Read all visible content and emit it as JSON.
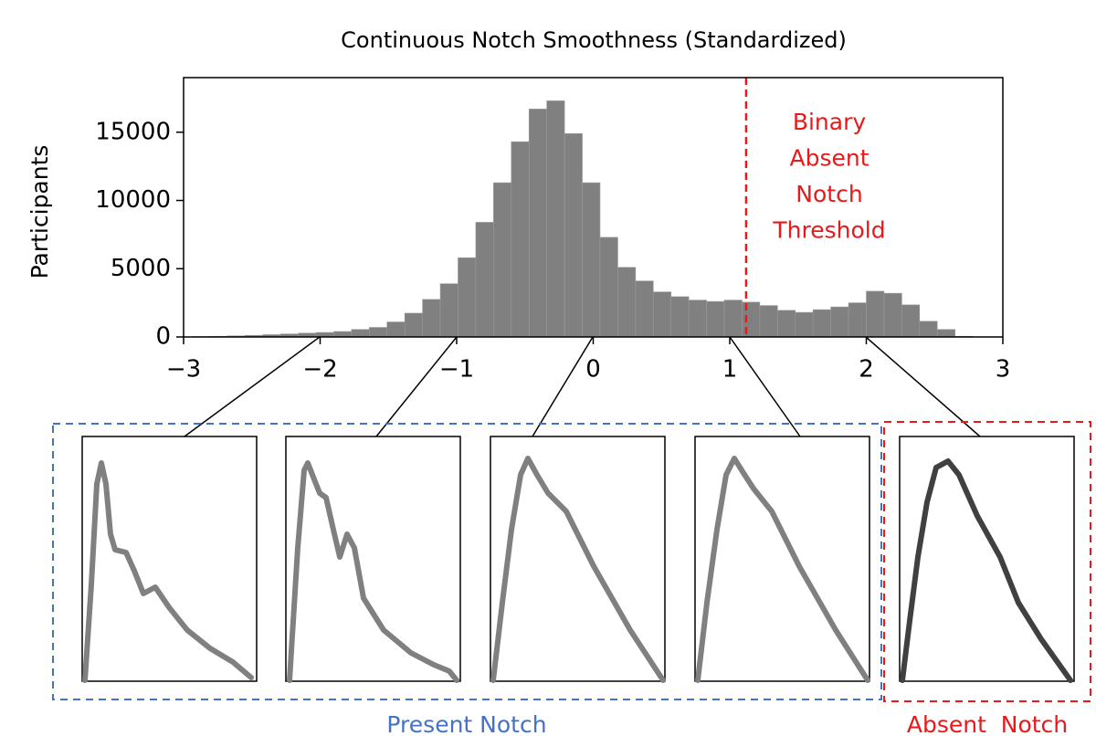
{
  "chart_data": {
    "type": "histogram",
    "title": "Continuous Notch Smoothness (Standardized)",
    "ylabel": "Participants",
    "bins": [
      -2.94,
      -2.81,
      -2.68,
      -2.55,
      -2.42,
      -2.29,
      -2.16,
      -2.03,
      -1.9,
      -1.77,
      -1.64,
      -1.51,
      -1.38,
      -1.25,
      -1.12,
      -0.99,
      -0.86,
      -0.73,
      -0.6,
      -0.47,
      -0.34,
      -0.21,
      -0.08,
      0.05,
      0.18,
      0.31,
      0.44,
      0.57,
      0.7,
      0.83,
      0.96,
      1.09,
      1.22,
      1.35,
      1.48,
      1.61,
      1.74,
      1.87,
      2.0,
      2.13,
      2.26,
      2.39,
      2.52,
      2.65,
      2.78
    ],
    "counts": [
      30,
      50,
      80,
      120,
      170,
      220,
      280,
      330,
      400,
      550,
      700,
      1100,
      1740,
      2750,
      3900,
      5800,
      8400,
      11300,
      14300,
      16700,
      17300,
      14900,
      11300,
      7300,
      5100,
      4100,
      3300,
      2950,
      2700,
      2600,
      2700,
      2550,
      2300,
      1950,
      1800,
      2000,
      2200,
      2500,
      3350,
      3200,
      2350,
      1150,
      550,
      50
    ],
    "color": "#808080",
    "xlim": [
      -3,
      3
    ],
    "xticks": [
      {
        "value": -3,
        "label": "−3"
      },
      {
        "value": -2,
        "label": "−2"
      },
      {
        "value": -1,
        "label": "−1"
      },
      0,
      1,
      2,
      3
    ],
    "ylim": [
      0,
      19000
    ],
    "yticks": [
      0,
      5000,
      10000,
      15000
    ],
    "threshold": 1.12,
    "threshold_color": "#e8191b",
    "annotation": [
      "Binary",
      "Absent",
      "Notch",
      "Threshold"
    ],
    "groups": [
      {
        "label": "Present Notch",
        "color": "#4472c4"
      },
      {
        "label": "Absent  Notch",
        "color": "#e8191b"
      }
    ]
  }
}
